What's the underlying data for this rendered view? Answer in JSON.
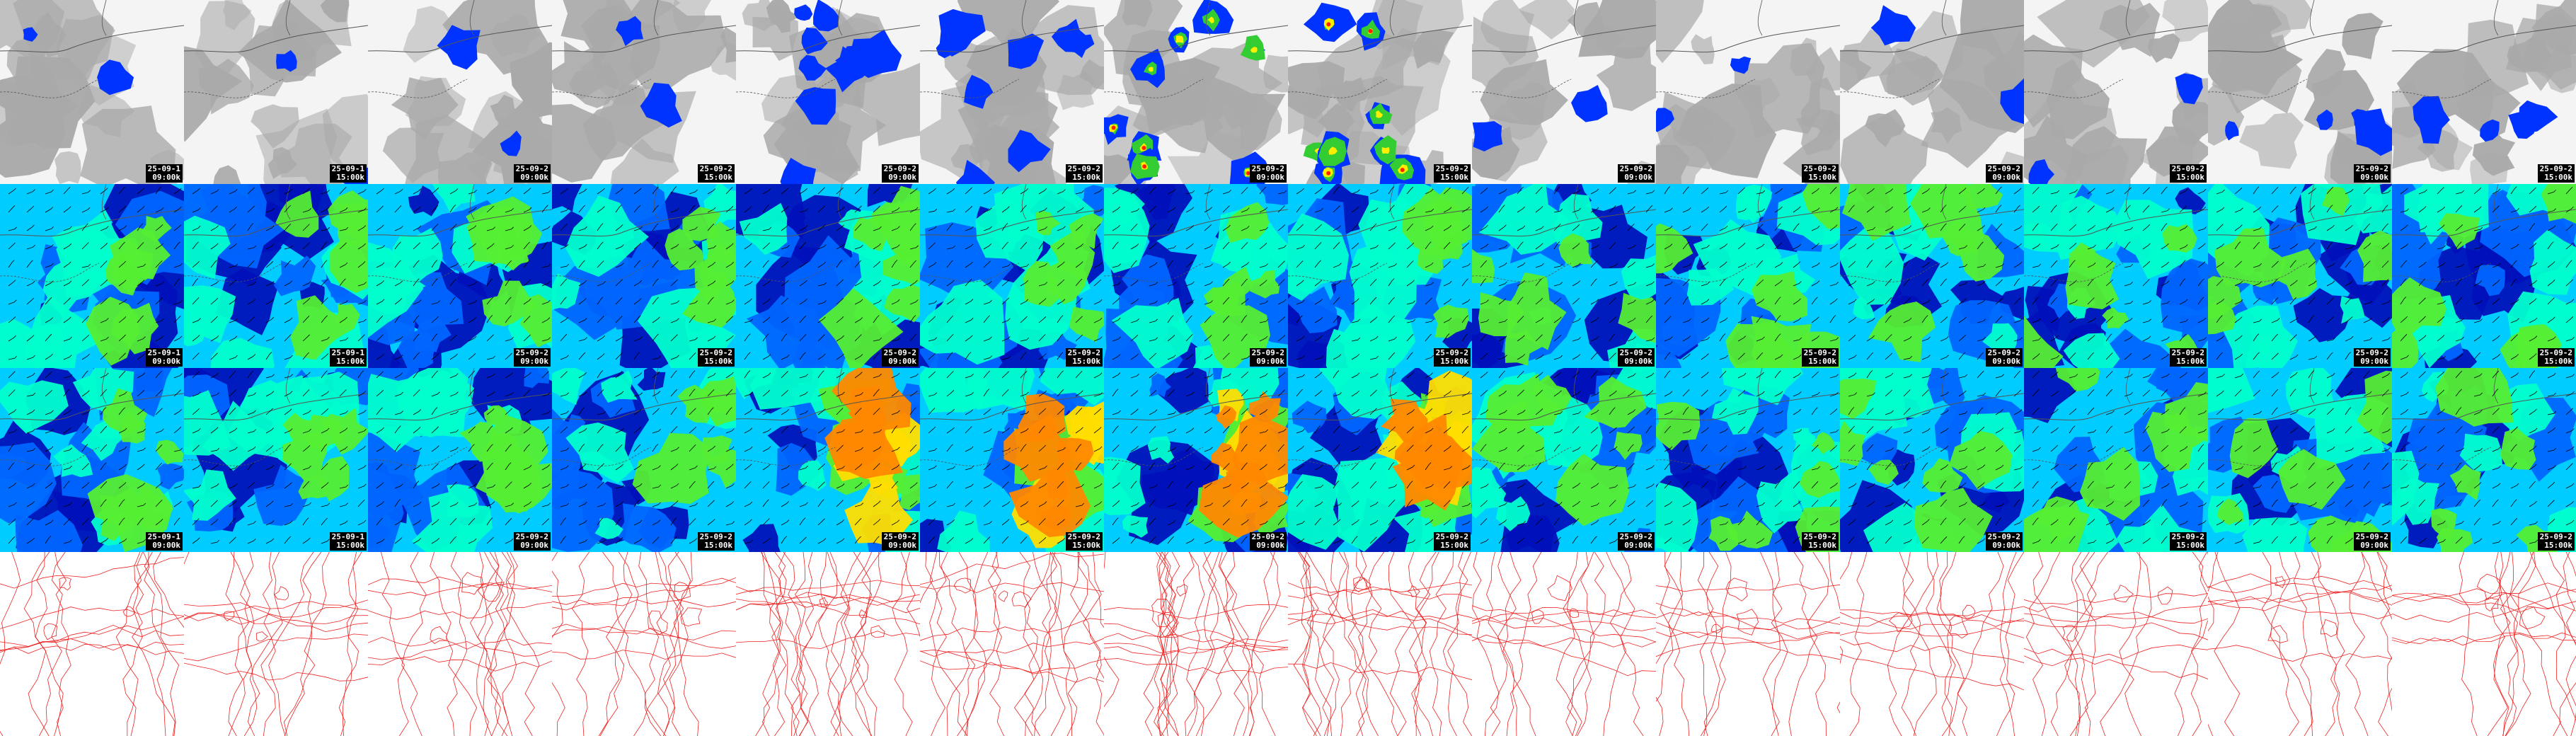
{
  "layout": {
    "rows": 4,
    "cols": 14
  },
  "panel_types": [
    "precipitation",
    "wind-850",
    "wind-10m",
    "pressure-contours"
  ],
  "dates": [
    "25-09-1",
    "25-09-1",
    "25-09-2",
    "25-09-2",
    "25-09-2",
    "25-09-2",
    "25-09-2",
    "25-09-2",
    "25-09-2",
    "25-09-2",
    "25-09-2",
    "25-09-2",
    "25-09-2",
    "25-09-2"
  ],
  "times": [
    "09:00k",
    "15:00k",
    "09:00k",
    "15:00k",
    "09:00k",
    "15:00k",
    "09:00k",
    "15:00k",
    "09:00k",
    "15:00k",
    "09:00k",
    "15:00k",
    "09:00k",
    "15:00k"
  ],
  "colors": {
    "cloud_light": "#f4f4f4",
    "cloud_gray": "#a9a9a9",
    "precip_blue": "#0033ff",
    "precip_green": "#33cc33",
    "precip_yellow": "#ffee00",
    "precip_red": "#ff2200",
    "wind_deep": "#0011bb",
    "wind_blue": "#0066ff",
    "wind_cyan": "#00ccff",
    "wind_teal": "#00ffcc",
    "wind_green": "#55ee33",
    "wind_yellow": "#ffdd00",
    "wind_orange": "#ff8800",
    "contour_red": "#ee2222",
    "coastline": "#555555"
  },
  "icons": {
    "wind_barb": "wind-barb-icon"
  }
}
